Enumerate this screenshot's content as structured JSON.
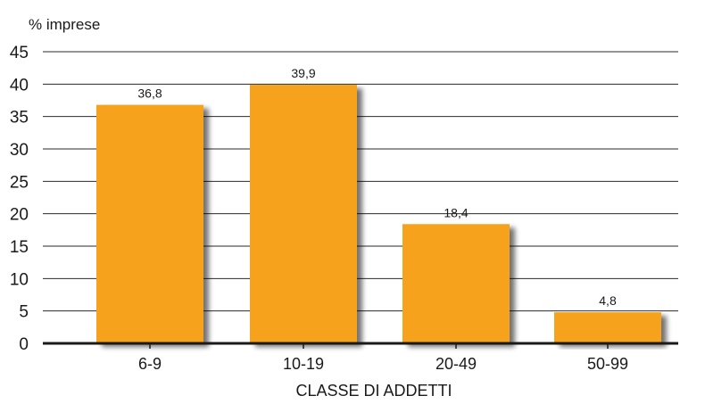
{
  "chart_data": {
    "type": "bar",
    "title": "",
    "ylabel": "% imprese",
    "xlabel": "CLASSE DI ADDETTI",
    "categories": [
      "6-9",
      "10-19",
      "20-49",
      "50-99"
    ],
    "values": [
      36.8,
      39.9,
      18.4,
      4.8
    ],
    "value_labels": [
      "36,8",
      "39,9",
      "18,4",
      "4,8"
    ],
    "yticks": [
      0,
      5,
      10,
      15,
      20,
      25,
      30,
      35,
      40,
      45
    ],
    "ylim": [
      0,
      45
    ],
    "grid": true,
    "legend": "none",
    "colors": {
      "bar": "#f7a21b",
      "shadow": "#9a9a9a"
    }
  }
}
